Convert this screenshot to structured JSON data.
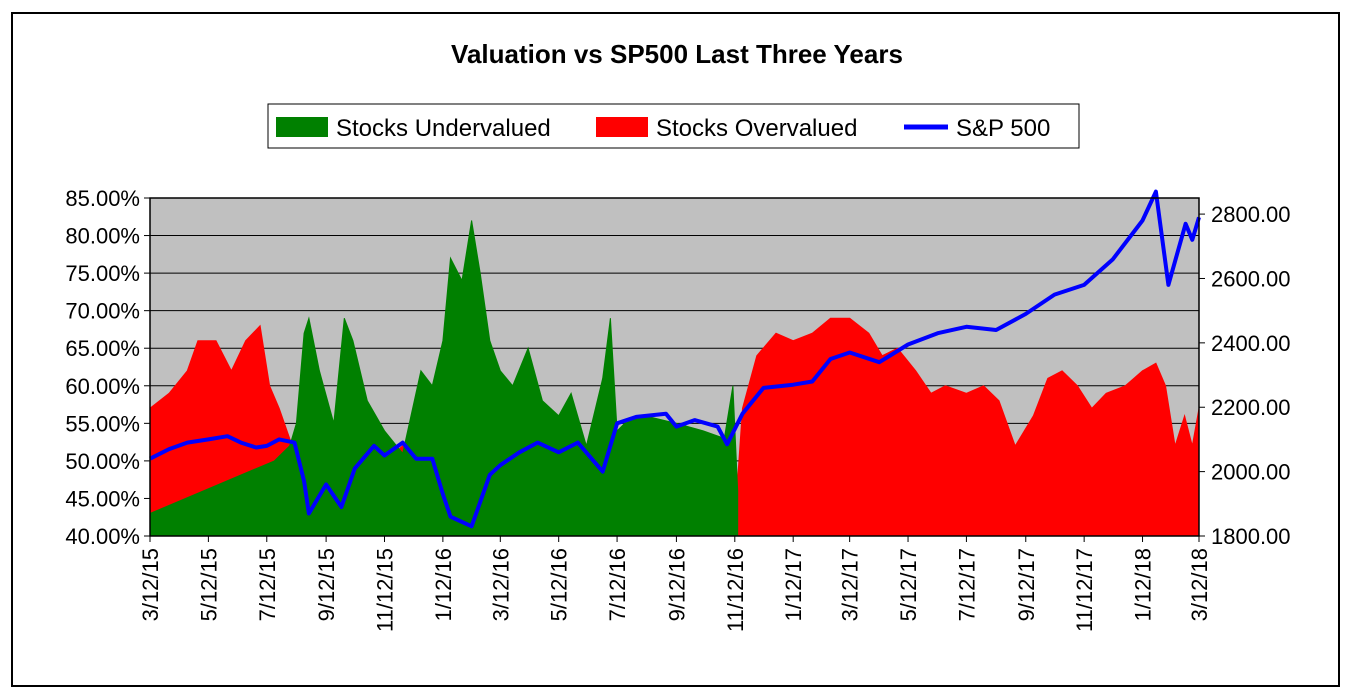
{
  "chart_data": {
    "type": "area",
    "title": "Valuation vs SP500 Last Three Years",
    "legend_position": "top-center",
    "grid": true,
    "plot_background": "#c0c0c0",
    "legend": [
      {
        "name": "Stocks Undervalued",
        "color": "#008000",
        "kind": "area"
      },
      {
        "name": "Stocks Overvalued",
        "color": "#ff0000",
        "kind": "area"
      },
      {
        "name": "S&P 500",
        "color": "#0000ff",
        "kind": "line"
      }
    ],
    "x_tick_labels": [
      "3/12/15",
      "5/12/15",
      "7/12/15",
      "9/12/15",
      "11/12/15",
      "1/12/16",
      "3/12/16",
      "5/12/16",
      "7/12/16",
      "9/12/16",
      "11/12/16",
      "1/12/17",
      "3/12/17",
      "5/12/17",
      "7/12/17",
      "9/12/17",
      "11/12/17",
      "1/12/18",
      "3/12/18"
    ],
    "y_left": {
      "min": 0.4,
      "max": 0.85,
      "tick_labels": [
        "85.00%",
        "80.00%",
        "75.00%",
        "70.00%",
        "65.00%",
        "60.00%",
        "55.00%",
        "50.00%",
        "45.00%",
        "40.00%"
      ],
      "tick_values": [
        0.85,
        0.8,
        0.75,
        0.7,
        0.65,
        0.6,
        0.55,
        0.5,
        0.45,
        0.4
      ]
    },
    "y_right": {
      "min": 1800,
      "max": 2850,
      "tick_labels": [
        "2800.00",
        "2600.00",
        "2400.00",
        "2200.00",
        "2000.00",
        "1800.00"
      ],
      "tick_values": [
        2800,
        2600,
        2400,
        2200,
        2000,
        1800
      ]
    },
    "series": [
      {
        "name": "Stocks Overvalued",
        "color": "#ff0000",
        "points": [
          [
            "3/12/15",
            0.57
          ],
          [
            "4/1/15",
            0.59
          ],
          [
            "4/20/15",
            0.62
          ],
          [
            "5/1/15",
            0.66
          ],
          [
            "5/20/15",
            0.66
          ],
          [
            "6/5/15",
            0.62
          ],
          [
            "6/20/15",
            0.66
          ],
          [
            "7/5/15",
            0.68
          ],
          [
            "7/15/15",
            0.6
          ],
          [
            "7/25/15",
            0.57
          ],
          [
            "8/5/15",
            0.53
          ],
          [
            "8/20/15",
            0.48
          ],
          [
            "9/1/15",
            0.42
          ],
          [
            "9/20/15",
            0.41
          ],
          [
            "10/5/15",
            0.43
          ],
          [
            "10/25/15",
            0.45
          ],
          [
            "11/12/15",
            0.5
          ],
          [
            "12/1/15",
            0.52
          ],
          [
            "12/15/15",
            0.47
          ],
          [
            "1/1/16",
            0.45
          ],
          [
            "1/12/16",
            0.43
          ],
          [
            "2/10/16",
            0.4
          ],
          [
            "3/5/16",
            0.41
          ],
          [
            "3/25/16",
            0.43
          ],
          [
            "4/20/16",
            0.47
          ],
          [
            "5/12/16",
            0.44
          ],
          [
            "6/1/16",
            0.47
          ],
          [
            "6/25/16",
            0.45
          ],
          [
            "7/12/16",
            0.42
          ],
          [
            "8/1/16",
            0.46
          ],
          [
            "8/25/16",
            0.49
          ],
          [
            "9/12/16",
            0.5
          ],
          [
            "10/10/16",
            0.48
          ],
          [
            "11/1/16",
            0.49
          ],
          [
            "11/12/16",
            0.42
          ],
          [
            "11/20/16",
            0.57
          ],
          [
            "12/5/16",
            0.64
          ],
          [
            "12/25/16",
            0.67
          ],
          [
            "1/12/17",
            0.66
          ],
          [
            "2/1/17",
            0.67
          ],
          [
            "2/20/17",
            0.69
          ],
          [
            "3/12/17",
            0.69
          ],
          [
            "4/1/17",
            0.67
          ],
          [
            "4/15/17",
            0.64
          ],
          [
            "5/1/17",
            0.65
          ],
          [
            "5/20/17",
            0.62
          ],
          [
            "6/5/17",
            0.59
          ],
          [
            "6/20/17",
            0.6
          ],
          [
            "7/12/17",
            0.59
          ],
          [
            "7/30/17",
            0.6
          ],
          [
            "8/15/17",
            0.58
          ],
          [
            "9/1/17",
            0.52
          ],
          [
            "9/20/17",
            0.56
          ],
          [
            "10/5/17",
            0.61
          ],
          [
            "10/20/17",
            0.62
          ],
          [
            "11/5/17",
            0.6
          ],
          [
            "11/20/17",
            0.57
          ],
          [
            "12/5/17",
            0.59
          ],
          [
            "12/25/17",
            0.6
          ],
          [
            "1/12/18",
            0.62
          ],
          [
            "1/26/18",
            0.63
          ],
          [
            "2/5/18",
            0.6
          ],
          [
            "2/15/18",
            0.52
          ],
          [
            "2/25/18",
            0.56
          ],
          [
            "3/5/18",
            0.52
          ],
          [
            "3/12/18",
            0.57
          ]
        ]
      },
      {
        "name": "Stocks Undervalued",
        "color": "#008000",
        "points": [
          [
            "3/12/15",
            0.43
          ],
          [
            "7/20/15",
            0.5
          ],
          [
            "8/5/15",
            0.52
          ],
          [
            "8/12/15",
            0.55
          ],
          [
            "8/20/15",
            0.67
          ],
          [
            "8/25/15",
            0.69
          ],
          [
            "9/5/15",
            0.62
          ],
          [
            "9/20/15",
            0.55
          ],
          [
            "10/1/15",
            0.69
          ],
          [
            "10/10/15",
            0.66
          ],
          [
            "10/25/15",
            0.58
          ],
          [
            "11/12/15",
            0.54
          ],
          [
            "12/1/15",
            0.51
          ],
          [
            "12/20/15",
            0.62
          ],
          [
            "1/1/16",
            0.6
          ],
          [
            "1/12/16",
            0.66
          ],
          [
            "1/20/16",
            0.77
          ],
          [
            "2/1/16",
            0.74
          ],
          [
            "2/11/16",
            0.82
          ],
          [
            "2/20/16",
            0.75
          ],
          [
            "3/1/16",
            0.66
          ],
          [
            "3/12/16",
            0.62
          ],
          [
            "3/25/16",
            0.6
          ],
          [
            "4/10/16",
            0.65
          ],
          [
            "4/25/16",
            0.58
          ],
          [
            "5/12/16",
            0.56
          ],
          [
            "5/25/16",
            0.59
          ],
          [
            "6/10/16",
            0.52
          ],
          [
            "6/27/16",
            0.61
          ],
          [
            "7/5/16",
            0.69
          ],
          [
            "7/12/16",
            0.54
          ],
          [
            "7/20/16",
            0.55
          ],
          [
            "8/10/16",
            0.56
          ],
          [
            "9/12/16",
            0.55
          ],
          [
            "10/10/16",
            0.54
          ],
          [
            "11/1/16",
            0.53
          ],
          [
            "11/10/16",
            0.6
          ],
          [
            "11/15/16",
            0.46
          ]
        ]
      },
      {
        "name": "S&P 500",
        "color": "#0000ff",
        "points": [
          [
            "3/12/15",
            2040
          ],
          [
            "4/1/15",
            2070
          ],
          [
            "4/20/15",
            2090
          ],
          [
            "5/12/15",
            2100
          ],
          [
            "6/1/15",
            2110
          ],
          [
            "6/15/15",
            2090
          ],
          [
            "7/1/15",
            2075
          ],
          [
            "7/12/15",
            2080
          ],
          [
            "7/25/15",
            2100
          ],
          [
            "8/10/15",
            2090
          ],
          [
            "8/20/15",
            1970
          ],
          [
            "8/25/15",
            1870
          ],
          [
            "9/12/15",
            1960
          ],
          [
            "9/28/15",
            1890
          ],
          [
            "10/12/15",
            2010
          ],
          [
            "11/1/15",
            2080
          ],
          [
            "11/12/15",
            2050
          ],
          [
            "12/1/15",
            2090
          ],
          [
            "12/15/15",
            2040
          ],
          [
            "1/1/16",
            2040
          ],
          [
            "1/12/16",
            1930
          ],
          [
            "1/20/16",
            1860
          ],
          [
            "2/11/16",
            1830
          ],
          [
            "3/1/16",
            1990
          ],
          [
            "3/12/16",
            2020
          ],
          [
            "4/1/16",
            2060
          ],
          [
            "4/20/16",
            2090
          ],
          [
            "5/12/16",
            2060
          ],
          [
            "6/1/16",
            2090
          ],
          [
            "6/27/16",
            2000
          ],
          [
            "7/12/16",
            2150
          ],
          [
            "8/1/16",
            2170
          ],
          [
            "9/1/16",
            2180
          ],
          [
            "9/12/16",
            2140
          ],
          [
            "10/1/16",
            2160
          ],
          [
            "10/25/16",
            2140
          ],
          [
            "11/4/16",
            2085
          ],
          [
            "11/20/16",
            2180
          ],
          [
            "12/12/16",
            2260
          ],
          [
            "1/12/17",
            2270
          ],
          [
            "2/1/17",
            2280
          ],
          [
            "2/20/17",
            2350
          ],
          [
            "3/12/17",
            2370
          ],
          [
            "4/12/17",
            2340
          ],
          [
            "5/12/17",
            2395
          ],
          [
            "6/12/17",
            2430
          ],
          [
            "7/12/17",
            2450
          ],
          [
            "8/12/17",
            2440
          ],
          [
            "9/12/17",
            2490
          ],
          [
            "10/12/17",
            2550
          ],
          [
            "11/12/17",
            2580
          ],
          [
            "12/12/17",
            2660
          ],
          [
            "1/12/18",
            2780
          ],
          [
            "1/26/18",
            2870
          ],
          [
            "2/8/18",
            2580
          ],
          [
            "2/26/18",
            2770
          ],
          [
            "3/5/18",
            2720
          ],
          [
            "3/12/18",
            2790
          ]
        ]
      }
    ]
  }
}
